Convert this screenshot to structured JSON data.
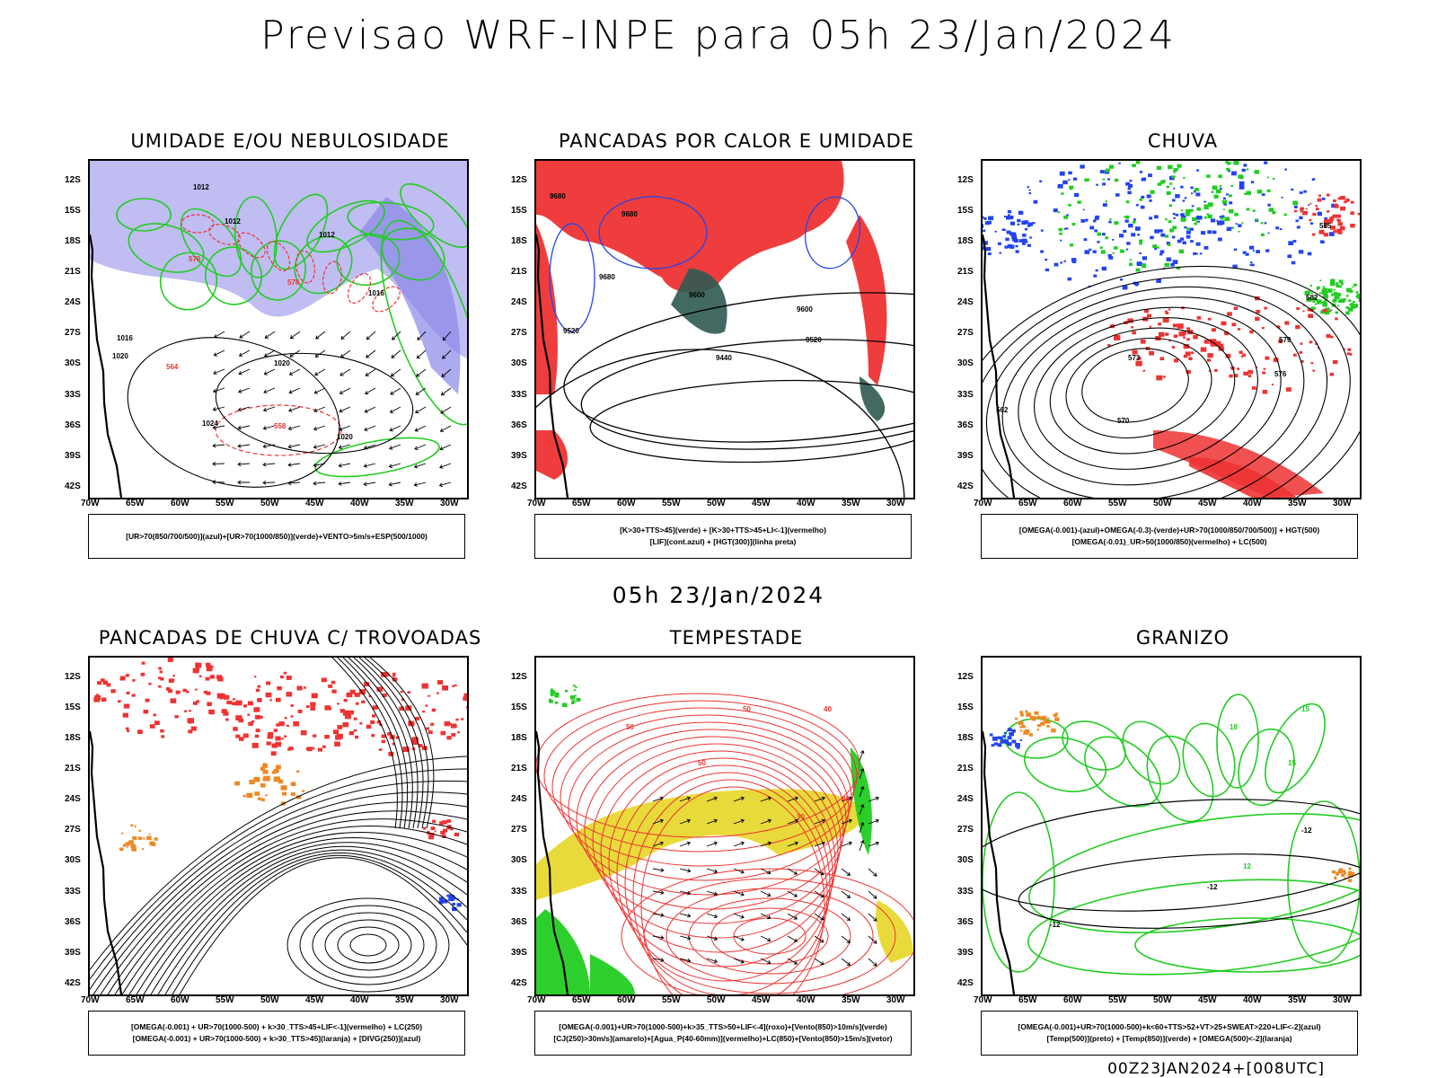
{
  "header": {
    "title": "Previsao WRF-INPE  para 05h 23/Jan/2024",
    "mid_title": "05h 23/Jan/2024",
    "run_stamp": "00Z23JAN2024+[008UTC]"
  },
  "axes": {
    "lat_labels": [
      "12S",
      "15S",
      "18S",
      "21S",
      "24S",
      "27S",
      "30S",
      "33S",
      "36S",
      "39S",
      "42S"
    ],
    "lon_labels": [
      "70W",
      "65W",
      "60W",
      "55W",
      "50W",
      "45W",
      "40W",
      "35W",
      "30W"
    ]
  },
  "colors": {
    "humid_purple": "#8a87e8",
    "green": "#22cc22",
    "red": "#ee3333",
    "blue": "#2244ee",
    "yellow": "#e8d830",
    "orange": "#ee8822",
    "dark_teal": "#2e5a52"
  },
  "panels": [
    {
      "title": "UMIDADE E/OU NEBULOSIDADE",
      "legend": [
        "[UR>70(850/700/500)](azul)+[UR>70(1000/850)](verde)+VENTO>5m/s+ESP(500/1000)"
      ],
      "contour_labels": [
        "1012",
        "1012",
        "1012",
        "1016",
        "1016",
        "1020",
        "1020",
        "1024",
        "1020",
        "576",
        "576",
        "564",
        "558"
      ]
    },
    {
      "title": "PANCADAS POR CALOR E UMIDADE",
      "legend": [
        "[K>30+TTS>45](verde)  +  [K>30+TTS>45+LI<-1](vermelho)",
        "[LIF](cont.azul)  +  [HGT(300)](linha preta)"
      ],
      "contour_labels": [
        "9680",
        "9680",
        "9680",
        "9600",
        "9600",
        "9520",
        "9520",
        "9440"
      ]
    },
    {
      "title": "CHUVA",
      "legend": [
        "[OMEGA(-0.001)-(azul)+OMEGA(-0.3)-(verde)+UR>70(1000/850/700/500)]  +  HGT(500)",
        "[OMEGA(-0.01)_UR>50(1000/850)(vermelho)  +  LC(500)"
      ],
      "contour_labels": [
        "585",
        "582",
        "579",
        "576",
        "573",
        "570",
        "562"
      ]
    },
    {
      "title": "PANCADAS DE CHUVA C/ TROVOADAS",
      "legend": [
        "[OMEGA(-0.001)  +  UR>70(1000-500)  +  k>30_TTS>45+LIF<-1](vermelho)  +  LC(250)",
        "[OMEGA(-0.001)  +  UR>70(1000-500)  +  k>30_TTS>45](laranja)  +  [DIVG(250)](azul)"
      ],
      "contour_labels": []
    },
    {
      "title": "TEMPESTADE",
      "legend": [
        "[OMEGA(-0.001)+UR>70(1000-500)+k>35_TTS>50+LIF<-4](roxo)+[Vento(850)>10m/s](verde)",
        "[CJ(250)>30m/s](amarelo)+[Agua_P(40-60mm)](vermelho)+LC(850)+[Vento(850)>15m/s](vetor)"
      ],
      "contour_labels": [
        "50",
        "40",
        "30",
        "50",
        "40",
        "50"
      ]
    },
    {
      "title": "GRANIZO",
      "legend": [
        "[OMEGA(-0.001)+UR>70(1000-500)+k<60+TTS>52+VT>25+SWEAT>220+LIF<-2](azul)",
        "[Temp(500)](preto)  +  [Temp(850)](verde)  +  [OMEGA(500)<-2](laranja)"
      ],
      "contour_labels": [
        "-12",
        "-12",
        "-12",
        "15",
        "15",
        "18",
        "12"
      ]
    }
  ]
}
